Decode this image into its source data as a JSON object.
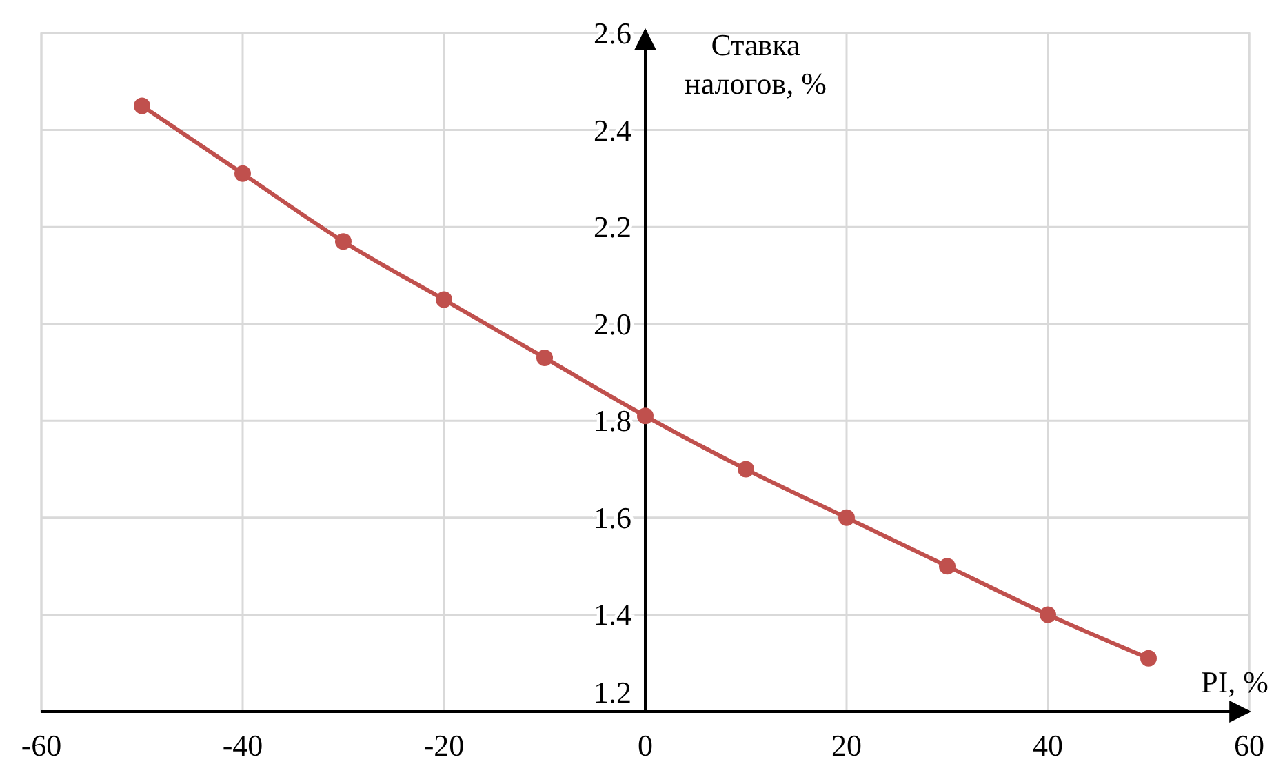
{
  "chart_data": {
    "type": "line",
    "xlabel": "PI, %",
    "ylabel": "Ставка налогов, %",
    "x": [
      -50,
      -40,
      -30,
      -20,
      -10,
      0,
      10,
      20,
      30,
      40,
      50
    ],
    "series": [
      {
        "color": "#c0504d",
        "values": [
          2.45,
          2.31,
          2.17,
          2.05,
          1.93,
          1.81,
          1.7,
          1.6,
          1.5,
          1.4,
          1.31
        ]
      }
    ],
    "xlim": [
      -60,
      60
    ],
    "xticks": [
      -60,
      -40,
      -20,
      0,
      20,
      40,
      60
    ],
    "ylim": [
      1.2,
      2.6
    ],
    "yticks": [
      {
        "value": 1.2,
        "label": "1.2"
      },
      {
        "value": 1.4,
        "label": "1.4"
      },
      {
        "value": 1.6,
        "label": "1.6"
      },
      {
        "value": 1.8,
        "label": "1.8"
      },
      {
        "value": 2.0,
        "label": "2.0"
      },
      {
        "value": 2.2,
        "label": "2.2"
      },
      {
        "value": 2.4,
        "label": "2.4"
      },
      {
        "value": 2.6,
        "label": "2.6"
      }
    ],
    "grid": true,
    "marker": "circle",
    "line_style": "solid"
  }
}
